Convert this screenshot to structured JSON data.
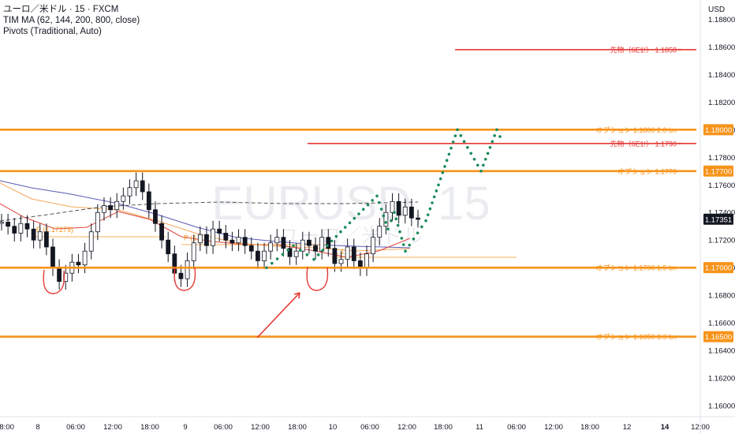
{
  "legend": {
    "line1": "ユーロ／米ドル · 15 · FXCM",
    "line2": "TIM MA (62, 144, 200, 800, close)",
    "line3": "Pivots (Traditional, Auto)"
  },
  "watermark": {
    "symbol": "EURUSD, 15",
    "name": "ユーロ／米ドル"
  },
  "colors": {
    "orange": "#f7931a",
    "red": "#e53935",
    "green": "#1b8a5a",
    "candle": "#131722",
    "ma_purple": "#5b5bb8",
    "ma_red": "#e0433d",
    "ma_orange": "#f5a65b",
    "ma_dashed": "#555555",
    "current_price_bg": "#131722"
  },
  "chart_data": {
    "type": "candlestick",
    "currency": "USD",
    "ylim": [
      1.1592,
      1.1894
    ],
    "y_ticks": [
      "1.18800",
      "1.18600",
      "1.18400",
      "1.18200",
      "1.18000",
      "1.17800",
      "1.17600",
      "1.17400",
      "1.17200",
      "1.17000",
      "1.16800",
      "1.16600",
      "1.16400",
      "1.16200",
      "1.16000"
    ],
    "x_tick_labels": [
      "18:00",
      "8",
      "06:00",
      "12:00",
      "18:00",
      "9",
      "06:00",
      "12:00",
      "18:00",
      "10",
      "06:00",
      "12:00",
      "18:00",
      "11",
      "06:00",
      "12:00",
      "18:00",
      "12",
      "14",
      "12:00"
    ],
    "current_price": "1.17351",
    "horizontal_levels": [
      {
        "label": "オプション 1.1800 2.0 bn",
        "price": 1.18,
        "price_label": "1.18000",
        "color": "orange"
      },
      {
        "label": "オプション 1.1770",
        "price": 1.177,
        "price_label": "1.17700",
        "color": "orange"
      },
      {
        "label": "オプション 1.1700 1.5 bn",
        "price": 1.17,
        "price_label": "1.17000",
        "color": "orange"
      },
      {
        "label": "オプション 1.1650 3.6 bn",
        "price": 1.165,
        "price_label": "1.16500",
        "color": "orange"
      },
      {
        "label": "先物（6E1!）  1.1858",
        "price": 1.1858,
        "color": "red"
      },
      {
        "label": "先物（6E1!）  1.1790",
        "price": 1.179,
        "color": "red"
      }
    ],
    "pivot_labels": [
      {
        "text": "P (1.17279)",
        "price": 1.1728
      },
      {
        "text": "P (1.1...",
        "price": 1.1722
      },
      {
        "text": "(1.1...",
        "price": 1.1712
      }
    ],
    "projected_path": [
      1.17,
      1.1716,
      1.1706,
      1.1726,
      1.1752,
      1.1728,
      1.174,
      1.1712,
      1.1734,
      1.176,
      1.18,
      1.177,
      1.18,
      1.179
    ],
    "price_series": [
      1.1733,
      1.173,
      1.1725,
      1.1732,
      1.1728,
      1.172,
      1.1726,
      1.1715,
      1.17,
      1.169,
      1.1696,
      1.1704,
      1.1702,
      1.1712,
      1.1726,
      1.174,
      1.1745,
      1.1742,
      1.1748,
      1.1752,
      1.1758,
      1.1763,
      1.1755,
      1.1742,
      1.1732,
      1.172,
      1.171,
      1.1696,
      1.1692,
      1.1705,
      1.1718,
      1.1724,
      1.1716,
      1.1728,
      1.1725,
      1.172,
      1.1718,
      1.1722,
      1.1716,
      1.1712,
      1.1705,
      1.1712,
      1.1718,
      1.1722,
      1.1714,
      1.1708,
      1.1712,
      1.172,
      1.1716,
      1.1712,
      1.1722,
      1.1714,
      1.1703,
      1.1706,
      1.1715,
      1.1705,
      1.17,
      1.171,
      1.1722,
      1.173,
      1.174,
      1.1748,
      1.1738,
      1.1744,
      1.1736,
      1.1735
    ]
  }
}
